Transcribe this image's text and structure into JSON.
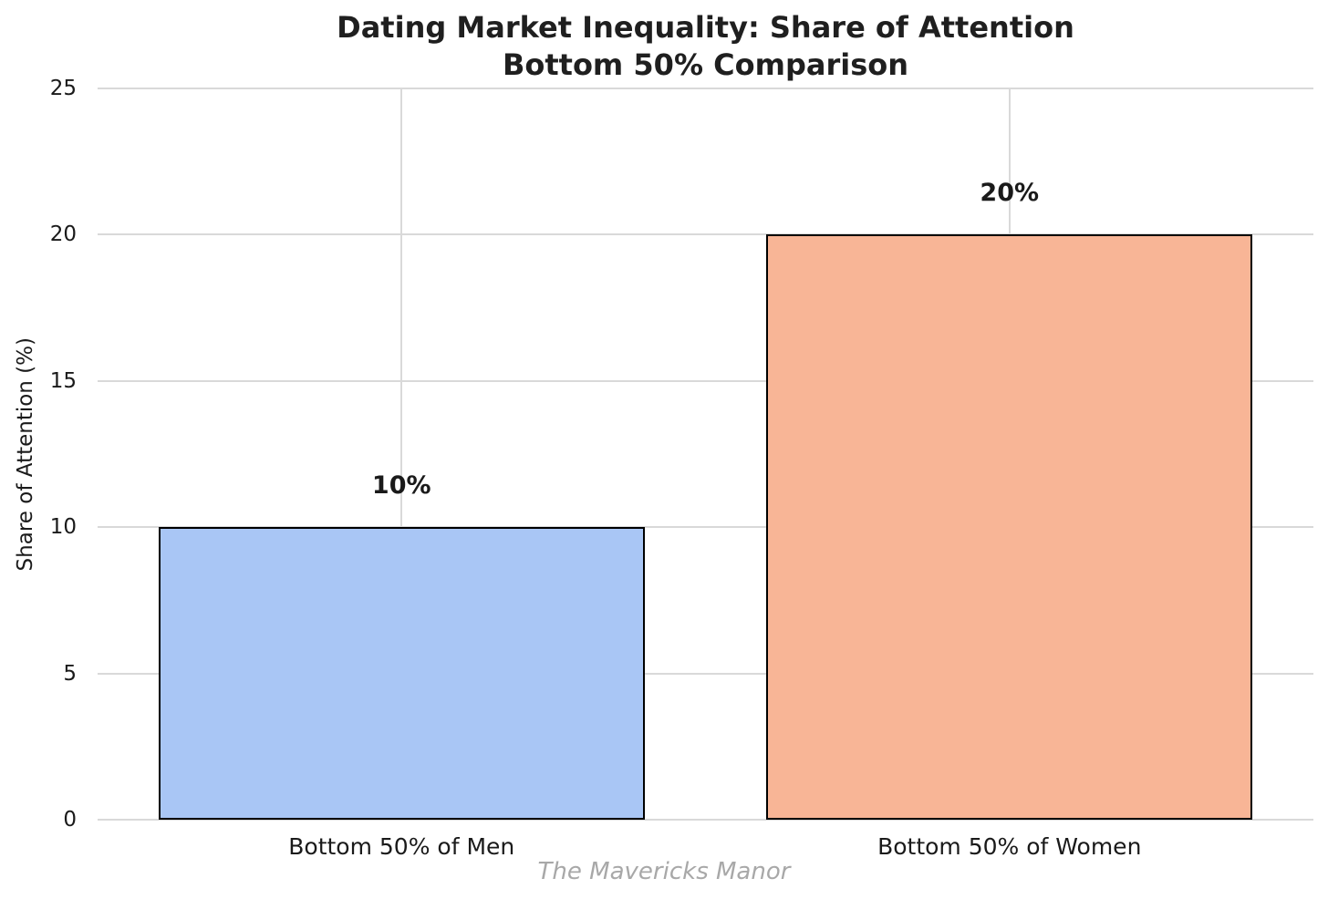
{
  "figure": {
    "title_line1": "Dating Market Inequality: Share of Attention",
    "title_line2": "Bottom 50% Comparison",
    "watermark": "The Mavericks Manor"
  },
  "chart_data": {
    "type": "bar",
    "title": "Dating Market Inequality: Share of Attention\nBottom 50% Comparison",
    "categories": [
      "Bottom 50% of Men",
      "Bottom 50% of Women"
    ],
    "values": [
      10,
      20
    ],
    "value_labels": [
      "10%",
      "20%"
    ],
    "xlabel": "",
    "ylabel": "Share of Attention (%)",
    "ylim": [
      0,
      25
    ],
    "yticks": [
      0,
      5,
      10,
      15,
      20,
      25
    ],
    "grid": true,
    "legend_position": "none",
    "bar_width_fraction": 0.8,
    "bar_colors": [
      "#a9c6f5",
      "#f8b596"
    ],
    "bar_edge_color": "#000000",
    "annotation": "The Mavericks Manor"
  },
  "style": {
    "background": "#ffffff",
    "grid_color": "#d9d9d9",
    "text_color": "#1a1a1a",
    "title_color": "#1f1f1f",
    "watermark_color": "#a8a8a8"
  }
}
